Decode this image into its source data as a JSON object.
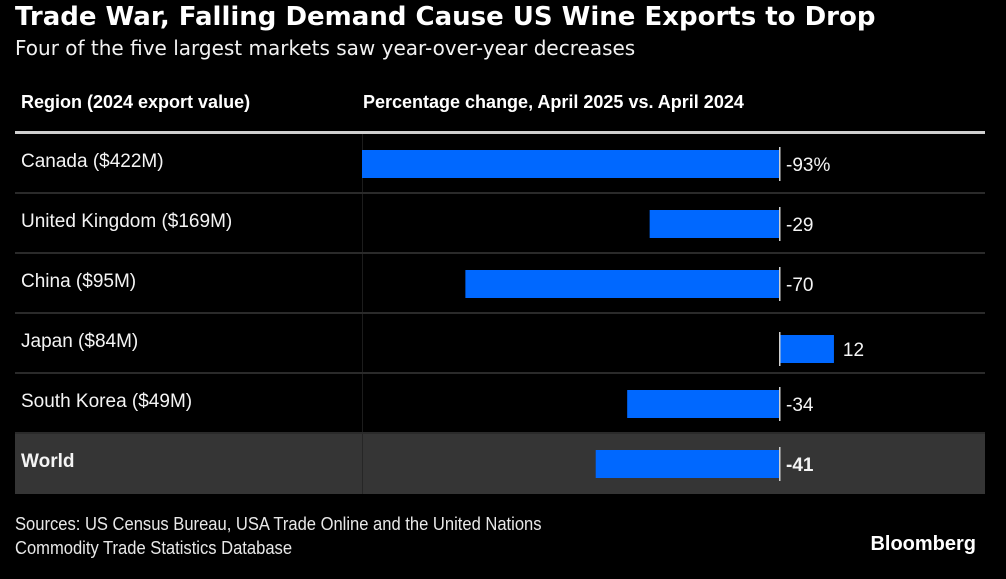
{
  "header": {
    "title": "Trade War, Falling Demand Cause US Wine Exports to Drop",
    "subtitle": "Four of the five largest markets saw year-over-year decreases"
  },
  "columns": {
    "region": "Region (2024 export value)",
    "change": "Percentage change, April 2025 vs. April 2024"
  },
  "footer": {
    "source_line1": "Sources: US Census Bureau, USA Trade Online and the United Nations",
    "source_line2": "Commodity Trade Statistics Database",
    "brand": "Bloomberg"
  },
  "colors": {
    "bar": "#0068ff",
    "background": "#000000",
    "world_row": "#353535",
    "axis": "#cfcfcf"
  },
  "chart_data": {
    "type": "bar",
    "orientation": "horizontal",
    "title": "Trade War, Falling Demand Cause US Wine Exports to Drop",
    "subtitle": "Four of the five largest markets saw year-over-year decreases",
    "xlabel": "Percentage change, April 2025 vs. April 2024",
    "ylabel": "Region (2024 export value)",
    "categories": [
      "Canada ($422M)",
      "United Kingdom ($169M)",
      "China ($95M)",
      "Japan ($84M)",
      "South Korea ($49M)",
      "World"
    ],
    "values": [
      -93,
      -29,
      -70,
      12,
      -34,
      -41
    ],
    "value_labels": [
      "-93%",
      "-29",
      "-70",
      "12",
      "-34",
      "-41"
    ],
    "highlight": "World",
    "xlim": [
      -93,
      30
    ],
    "grid": false,
    "legend": "none"
  }
}
